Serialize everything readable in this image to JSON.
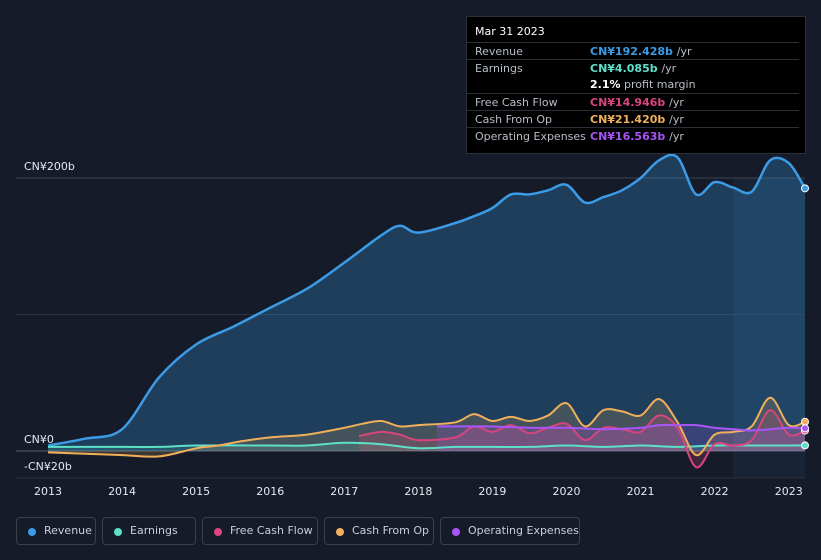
{
  "chart_data": {
    "type": "area",
    "y_label_top": "CN¥200b",
    "y_label_zero": "CN¥0",
    "y_label_bottom": "-CN¥20b",
    "ylim": [
      -20,
      200
    ],
    "xlim": [
      2013,
      2023.22
    ],
    "x_ticks": [
      "2013",
      "2014",
      "2015",
      "2016",
      "2017",
      "2018",
      "2019",
      "2020",
      "2021",
      "2022",
      "2023"
    ],
    "forecast_start": 2022.25,
    "series": [
      {
        "name": "Revenue",
        "key": "revenue",
        "color": "#3b9be6",
        "x": [
          2013,
          2013.5,
          2014,
          2014.5,
          2015,
          2015.5,
          2016,
          2016.5,
          2017,
          2017.5,
          2017.75,
          2018,
          2018.5,
          2018.75,
          2019,
          2019.25,
          2019.5,
          2019.75,
          2020,
          2020.25,
          2020.5,
          2020.75,
          2021,
          2021.25,
          2021.5,
          2021.75,
          2022,
          2022.25,
          2022.5,
          2022.75,
          2023,
          2023.22
        ],
        "values": [
          4,
          9,
          16,
          54,
          78,
          91,
          105,
          119,
          138,
          158,
          165,
          160,
          167,
          172,
          178,
          188,
          188,
          191,
          195,
          182,
          186,
          191,
          200,
          213,
          215,
          188,
          197,
          193,
          190,
          213,
          211,
          192.428
        ]
      },
      {
        "name": "Earnings",
        "key": "earnings",
        "color": "#5de0c8",
        "x": [
          2013,
          2014,
          2014.5,
          2015,
          2016,
          2016.5,
          2017,
          2017.5,
          2018,
          2018.5,
          2019,
          2019.5,
          2020,
          2020.5,
          2021,
          2021.5,
          2022,
          2022.5,
          2023,
          2023.22
        ],
        "values": [
          3,
          3,
          3,
          4,
          4,
          4,
          6,
          5,
          2,
          3,
          3,
          3,
          4,
          3,
          4,
          3,
          4,
          4,
          4,
          4.085
        ]
      },
      {
        "name": "Free Cash Flow",
        "key": "fcf",
        "color": "#d9457f",
        "x": [
          2017.2,
          2017.5,
          2017.75,
          2018,
          2018.5,
          2018.75,
          2019,
          2019.25,
          2019.5,
          2019.75,
          2020,
          2020.25,
          2020.5,
          2020.75,
          2021,
          2021.25,
          2021.5,
          2021.75,
          2022,
          2022.25,
          2022.5,
          2022.75,
          2023,
          2023.22
        ],
        "values": [
          11,
          14,
          12,
          8,
          10,
          18,
          14,
          19,
          13,
          17,
          20,
          8,
          17,
          16,
          14,
          26,
          17,
          -12,
          5,
          4,
          8,
          30,
          12,
          14.946
        ]
      },
      {
        "name": "Cash From Op",
        "key": "cfo",
        "color": "#f0b05b",
        "x": [
          2013,
          2013.5,
          2014,
          2014.5,
          2015,
          2015.3,
          2015.6,
          2016,
          2016.5,
          2017,
          2017.25,
          2017.5,
          2017.75,
          2018,
          2018.5,
          2018.75,
          2019,
          2019.25,
          2019.5,
          2019.75,
          2020,
          2020.25,
          2020.5,
          2020.75,
          2021,
          2021.25,
          2021.5,
          2021.75,
          2022,
          2022.25,
          2022.5,
          2022.75,
          2023,
          2023.22
        ],
        "values": [
          -1,
          -2,
          -3,
          -4,
          2,
          4,
          7,
          10,
          12,
          17,
          20,
          22,
          18,
          19,
          21,
          27,
          22,
          25,
          22,
          26,
          35,
          18,
          30,
          29,
          26,
          38,
          21,
          -3,
          12,
          14,
          18,
          39,
          19,
          21.42
        ]
      },
      {
        "name": "Operating Expenses",
        "key": "opex",
        "color": "#a855f7",
        "x": [
          2018.25,
          2018.75,
          2019,
          2019.5,
          2020,
          2020.5,
          2021,
          2021.25,
          2021.5,
          2021.75,
          2022,
          2022.25,
          2022.5,
          2022.75,
          2023,
          2023.22
        ],
        "values": [
          18,
          18,
          18,
          17,
          17,
          16,
          17,
          19,
          19,
          19,
          17,
          16,
          15,
          16,
          17,
          16.563
        ]
      }
    ]
  },
  "tooltip": {
    "date": "Mar 31 2023",
    "rows": [
      {
        "label": "Revenue",
        "value": "CN¥192.428b",
        "unit": "/yr",
        "color": "#3b9be6"
      },
      {
        "label": "Earnings",
        "value": "CN¥4.085b",
        "unit": "/yr",
        "color": "#5de0c8"
      },
      {
        "label": "Free Cash Flow",
        "value": "CN¥14.946b",
        "unit": "/yr",
        "color": "#d9457f"
      },
      {
        "label": "Cash From Op",
        "value": "CN¥21.420b",
        "unit": "/yr",
        "color": "#f0b05b"
      },
      {
        "label": "Operating Expenses",
        "value": "CN¥16.563b",
        "unit": "/yr",
        "color": "#a855f7"
      }
    ],
    "margin_value": "2.1%",
    "margin_label": "profit margin"
  },
  "legend": [
    {
      "label": "Revenue",
      "color": "#3b9be6"
    },
    {
      "label": "Earnings",
      "color": "#5de0c8"
    },
    {
      "label": "Free Cash Flow",
      "color": "#d9457f"
    },
    {
      "label": "Cash From Op",
      "color": "#f0b05b"
    },
    {
      "label": "Operating Expenses",
      "color": "#a855f7"
    }
  ]
}
